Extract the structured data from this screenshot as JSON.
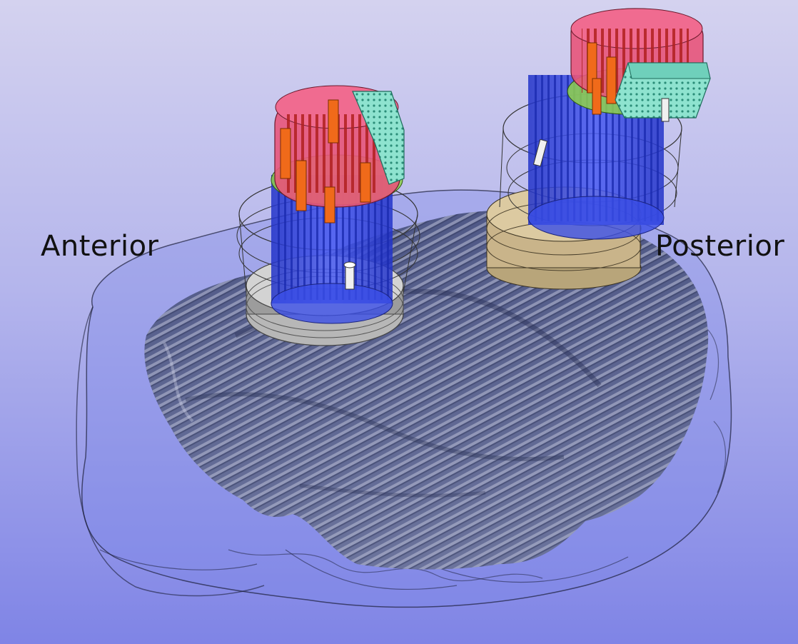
{
  "labels": {
    "anterior": "Anterior",
    "posterior": "Posterior"
  },
  "colors": {
    "background_top": "#d4d2ef",
    "background_bottom": "#7f84e6",
    "brain_surface": "#5d6691",
    "brain_highlight": "#a6acc8",
    "skull_shell": "#7a86e8",
    "housing_blue": "#3145e8",
    "cap_pink": "#e8557a",
    "screw_orange": "#f06a1a",
    "connector_teal": "#7fdcc8",
    "ring_gray": "#9c9c9c",
    "ring_tan": "#c9b48a"
  },
  "icons": [
    "anterior-implant",
    "posterior-implant",
    "brain-surface",
    "skull-outline"
  ]
}
